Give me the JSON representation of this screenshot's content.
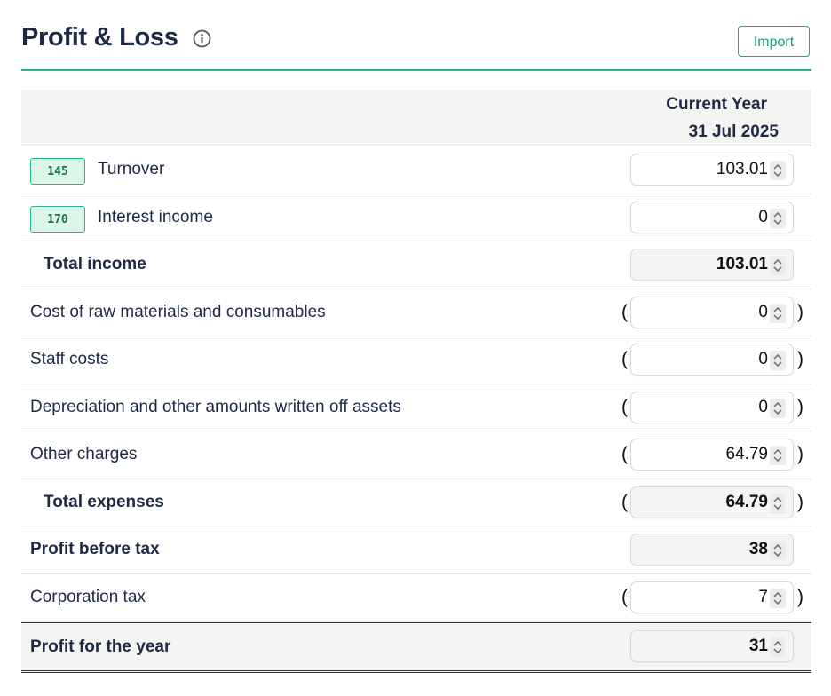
{
  "header": {
    "title": "Profit & Loss",
    "import_label": "Import"
  },
  "columns": {
    "line1": "Current Year",
    "line2": "31 Jul 2025"
  },
  "rows": [
    {
      "code": "145",
      "label": "Turnover",
      "value": "103.01"
    },
    {
      "code": "170",
      "label": "Interest income",
      "value": "0"
    },
    {
      "label": "Total income",
      "value": "103.01"
    },
    {
      "label": "Cost of raw materials and consumables",
      "value": "0"
    },
    {
      "label": "Staff costs",
      "value": "0"
    },
    {
      "label": "Depreciation and other amounts written off assets",
      "value": "0"
    },
    {
      "label": "Other charges",
      "value": "64.79"
    },
    {
      "label": "Total expenses",
      "value": "64.79"
    },
    {
      "label": "Profit before tax",
      "value": "38"
    },
    {
      "label": "Corporation tax",
      "value": "7"
    },
    {
      "label": "Profit for the year",
      "value": "31"
    }
  ],
  "parens": {
    "open": "(",
    "close": ")"
  },
  "colors": {
    "accent": "#2bb585",
    "title": "#1e2a44",
    "code_bg": "#dcf7ea"
  },
  "icons": {
    "info": "info-icon",
    "spinner": "number-spinner-icon"
  }
}
